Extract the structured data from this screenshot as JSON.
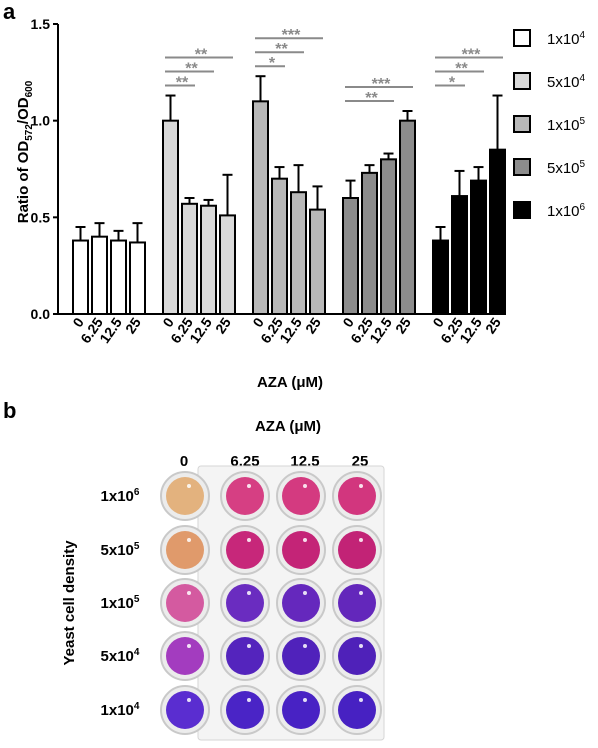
{
  "panel_a_label": "a",
  "panel_b_label": "b",
  "chart_data": {
    "type": "bar",
    "ylabel": "Ratio of OD572/OD600",
    "ylabel_parts": {
      "base": "Ratio of OD",
      "sub1": "572",
      "mid": "/OD",
      "sub2": "600"
    },
    "xlabel": "AZA (μM)",
    "ylim": [
      0,
      1.5
    ],
    "yticks": [
      "0.0",
      "0.5",
      "1.0",
      "1.5"
    ],
    "ytick_values": [
      0,
      0.5,
      1.0,
      1.5
    ],
    "categories": [
      "0",
      "6.25",
      "12.5",
      "25"
    ],
    "grid": false,
    "legend_position": "right",
    "series": [
      {
        "name": "1x10^4",
        "label_base": "1x10",
        "label_exp": "4",
        "color": "#ffffff",
        "values": [
          0.38,
          0.4,
          0.38,
          0.37
        ],
        "errors": [
          0.07,
          0.07,
          0.05,
          0.1
        ]
      },
      {
        "name": "5x10^4",
        "label_base": "5x10",
        "label_exp": "4",
        "color": "#d9d9d9",
        "values": [
          1.0,
          0.57,
          0.56,
          0.51
        ],
        "errors": [
          0.13,
          0.03,
          0.03,
          0.21
        ]
      },
      {
        "name": "1x10^5",
        "label_base": "1x10",
        "label_exp": "5",
        "color": "#b8b8b8",
        "values": [
          1.1,
          0.7,
          0.63,
          0.54
        ],
        "errors": [
          0.13,
          0.06,
          0.14,
          0.12
        ]
      },
      {
        "name": "5x10^5",
        "label_base": "5x10",
        "label_exp": "5",
        "color": "#8c8c8c",
        "values": [
          0.6,
          0.73,
          0.8,
          1.0
        ],
        "errors": [
          0.09,
          0.04,
          0.03,
          0.05
        ]
      },
      {
        "name": "1x10^6",
        "label_base": "1x10",
        "label_exp": "6",
        "color": "#000000",
        "values": [
          0.38,
          0.61,
          0.69,
          0.85
        ],
        "errors": [
          0.07,
          0.13,
          0.07,
          0.28
        ]
      }
    ],
    "significance": [
      {
        "series": 1,
        "from": 0,
        "to": 1,
        "label": "**"
      },
      {
        "series": 1,
        "from": 0,
        "to": 2,
        "label": "**"
      },
      {
        "series": 1,
        "from": 0,
        "to": 3,
        "label": "**"
      },
      {
        "series": 2,
        "from": 0,
        "to": 1,
        "label": "*"
      },
      {
        "series": 2,
        "from": 0,
        "to": 2,
        "label": "**"
      },
      {
        "series": 2,
        "from": 0,
        "to": 3,
        "label": "***"
      },
      {
        "series": 3,
        "from": 0,
        "to": 2,
        "label": "**"
      },
      {
        "series": 3,
        "from": 0,
        "to": 3,
        "label": "***"
      },
      {
        "series": 4,
        "from": 0,
        "to": 1,
        "label": "*"
      },
      {
        "series": 4,
        "from": 0,
        "to": 2,
        "label": "**"
      },
      {
        "series": 4,
        "from": 0,
        "to": 3,
        "label": "***"
      }
    ]
  },
  "plate": {
    "title": "AZA (μM)",
    "columns": [
      "0",
      "6.25",
      "12.5",
      "25"
    ],
    "row_axis_label": "Yeast cell density",
    "rows": [
      {
        "base": "1x10",
        "exp": "6",
        "colors": [
          "#e3b27e",
          "#d63f83",
          "#d43a80",
          "#d2367e"
        ]
      },
      {
        "base": "5x10",
        "exp": "5",
        "colors": [
          "#e09a6b",
          "#c7277a",
          "#c42477",
          "#c22376"
        ]
      },
      {
        "base": "1x10",
        "exp": "5",
        "colors": [
          "#d45aa0",
          "#6a2cc0",
          "#6528bd",
          "#6327bb"
        ]
      },
      {
        "base": "5x10",
        "exp": "4",
        "colors": [
          "#a33cbf",
          "#5424bd",
          "#5022bb",
          "#4f21b9"
        ]
      },
      {
        "base": "1x10",
        "exp": "4",
        "colors": [
          "#5a2dd0",
          "#4a24c6",
          "#4822c4",
          "#4721c2"
        ]
      }
    ]
  }
}
